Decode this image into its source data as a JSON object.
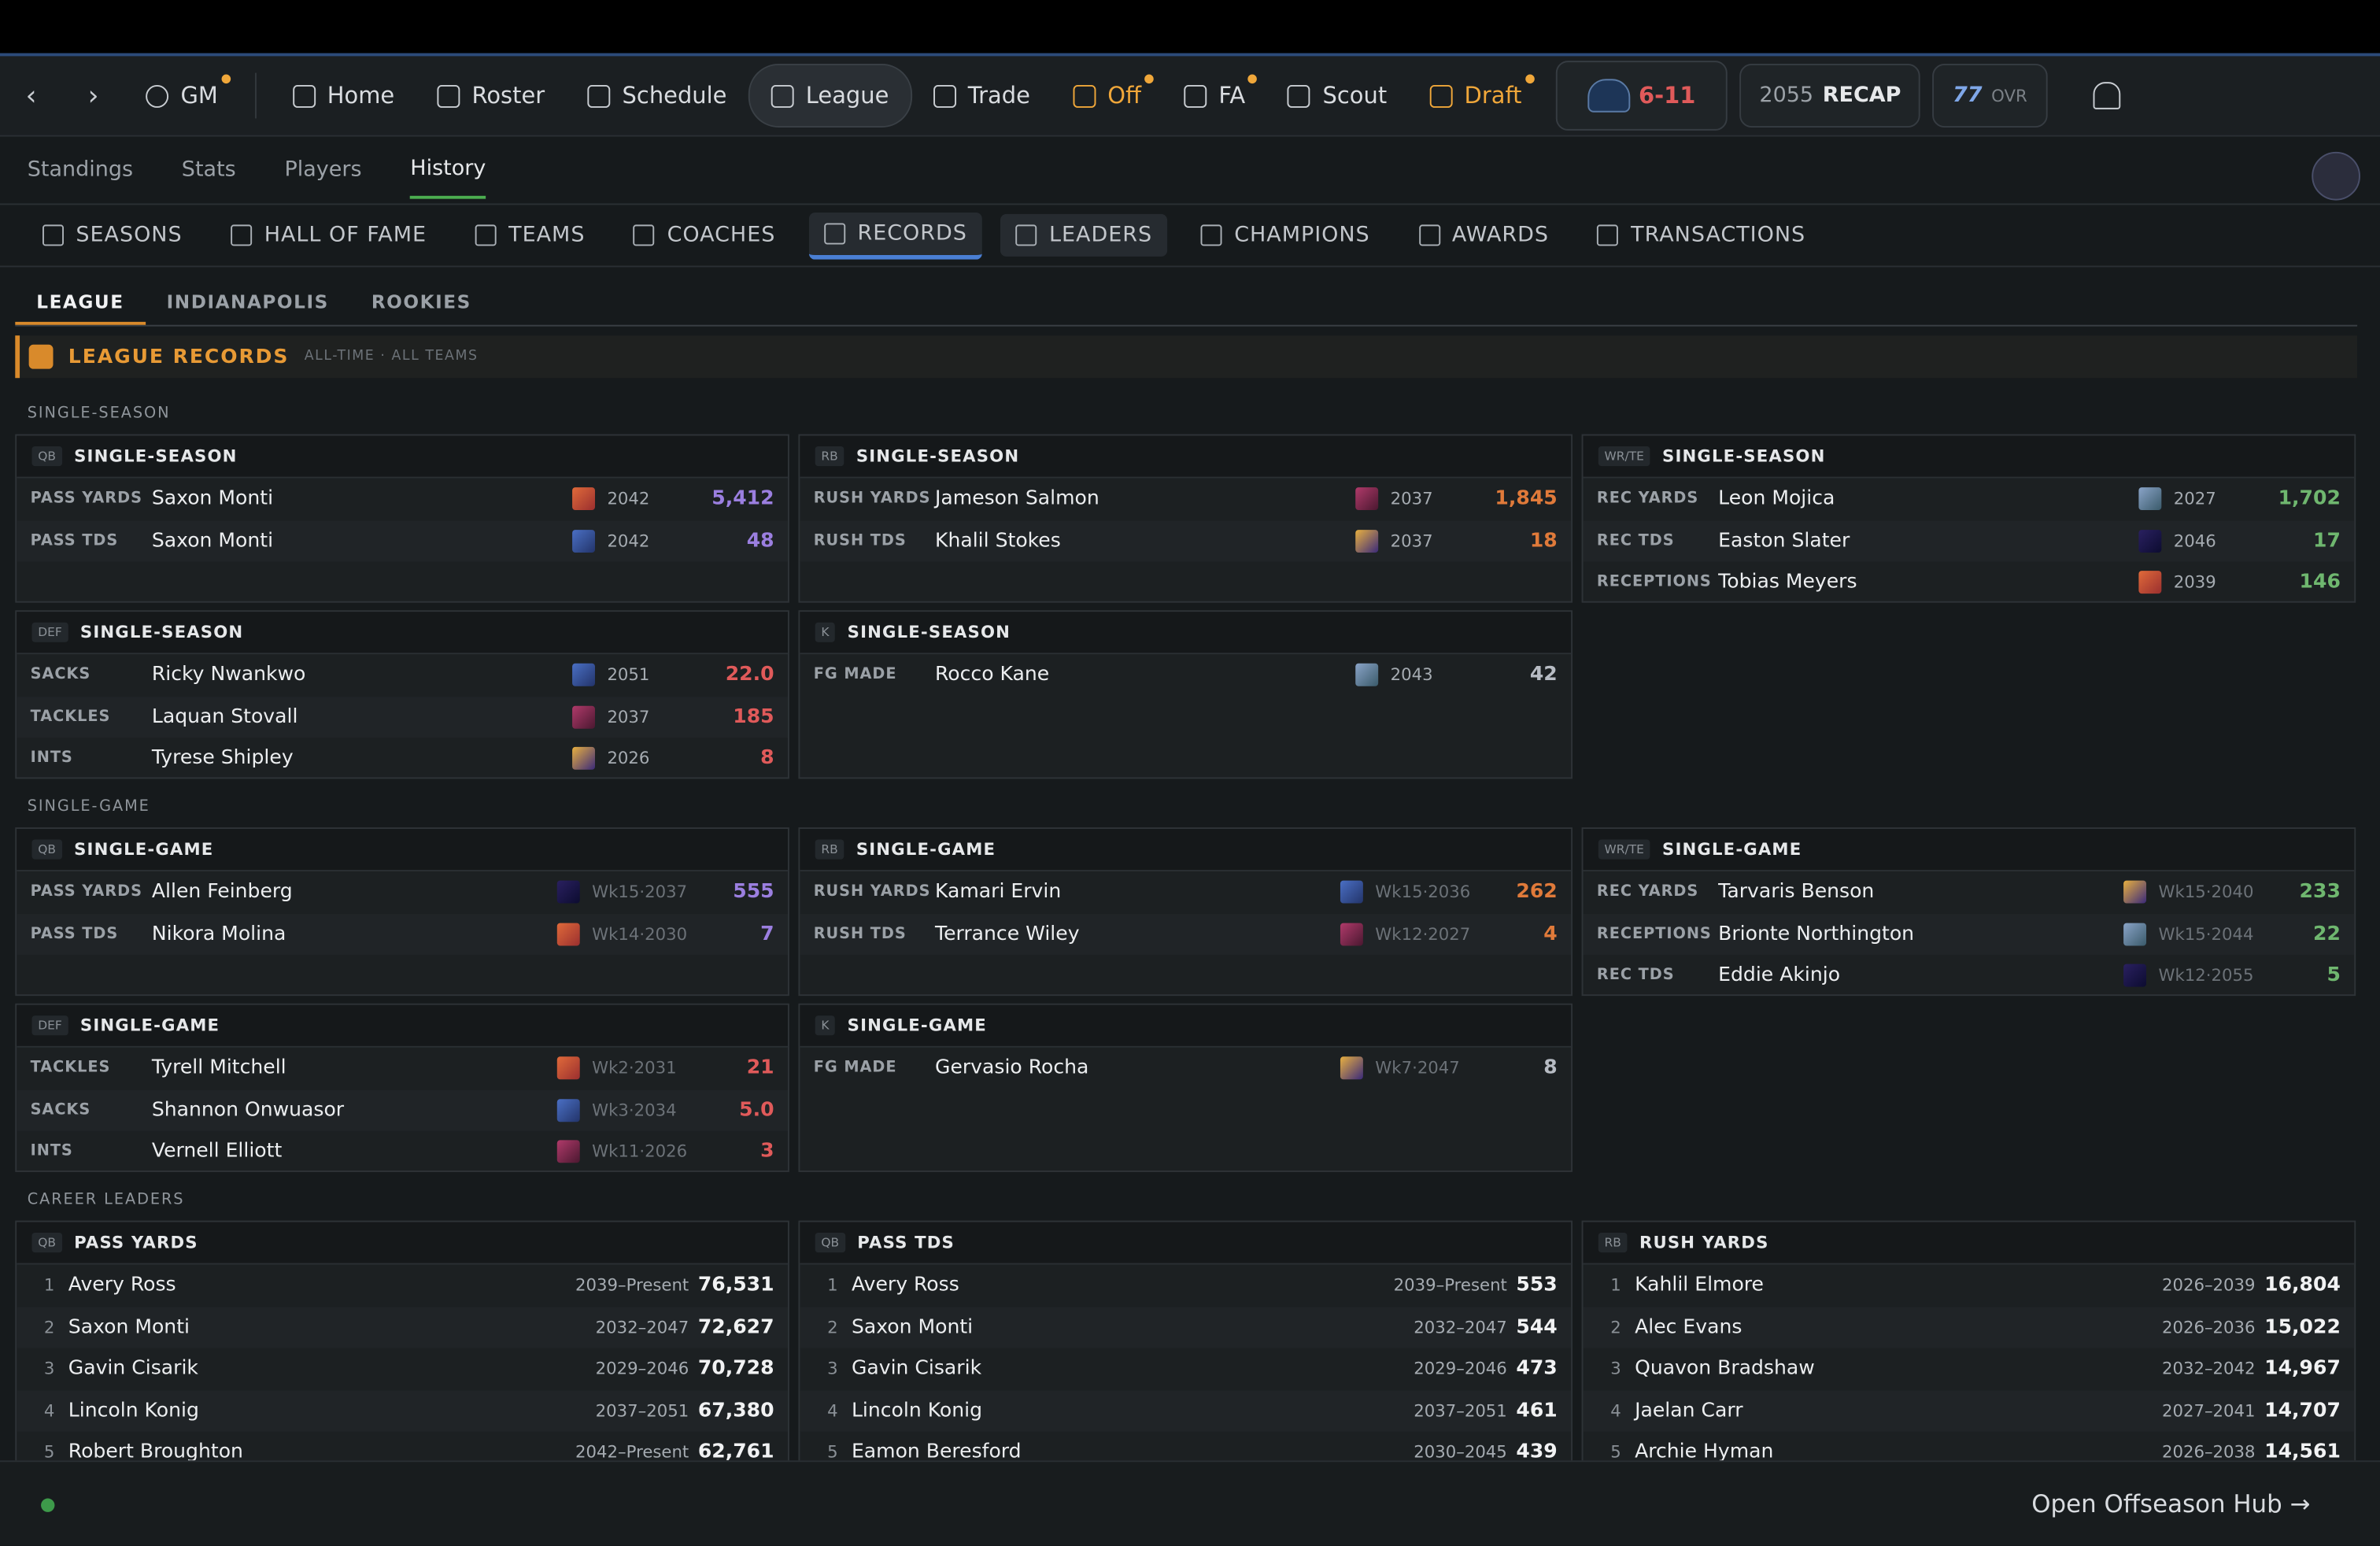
{
  "nav": {
    "gm": "GM",
    "items": [
      "Home",
      "Roster",
      "Schedule",
      "League",
      "Trade",
      "Off",
      "FA",
      "Scout",
      "Draft"
    ],
    "record": "6-11",
    "recap_year": "2055",
    "recap": "RECAP",
    "ovr": "77",
    "ovr_label": "OVR"
  },
  "subnav": [
    "Standings",
    "Stats",
    "Players",
    "History"
  ],
  "tabs": [
    "SEASONS",
    "HALL OF FAME",
    "TEAMS",
    "COACHES",
    "RECORDS",
    "LEADERS",
    "CHAMPIONS",
    "AWARDS",
    "TRANSACTIONS"
  ],
  "scope": [
    "LEAGUE",
    "INDIANAPOLIS",
    "ROOKIES"
  ],
  "header": {
    "title": "LEAGUE RECORDS",
    "subtitle": "ALL-TIME · ALL TEAMS"
  },
  "sections": [
    {
      "label": "SINGLE-SEASON",
      "cards": [
        {
          "pos": "QB",
          "title": "SINGLE-SEASON",
          "color": "#9b7fe0",
          "rows": [
            {
              "stat": "PASS YARDS",
              "player": "Saxon Monti",
              "year": "2042",
              "value": "5,412"
            },
            {
              "stat": "PASS TDS",
              "player": "Saxon Monti",
              "year": "2042",
              "value": "48"
            }
          ]
        },
        {
          "pos": "RB",
          "title": "SINGLE-SEASON",
          "color": "#e07a3a",
          "rows": [
            {
              "stat": "RUSH YARDS",
              "player": "Jameson Salmon",
              "year": "2037",
              "value": "1,845"
            },
            {
              "stat": "RUSH TDS",
              "player": "Khalil Stokes",
              "year": "2037",
              "value": "18"
            }
          ]
        },
        {
          "pos": "WR/TE",
          "title": "SINGLE-SEASON",
          "color": "#6fb76f",
          "rows": [
            {
              "stat": "REC YARDS",
              "player": "Leon Mojica",
              "year": "2027",
              "value": "1,702"
            },
            {
              "stat": "REC TDS",
              "player": "Easton Slater",
              "year": "2046",
              "value": "17"
            },
            {
              "stat": "RECEPTIONS",
              "player": "Tobias Meyers",
              "year": "2039",
              "value": "146"
            }
          ]
        },
        {
          "pos": "DEF",
          "title": "SINGLE-SEASON",
          "color": "#e05a5a",
          "rows": [
            {
              "stat": "SACKS",
              "player": "Ricky Nwankwo",
              "year": "2051",
              "value": "22.0"
            },
            {
              "stat": "TACKLES",
              "player": "Laquan Stovall",
              "year": "2037",
              "value": "185"
            },
            {
              "stat": "INTS",
              "player": "Tyrese Shipley",
              "year": "2026",
              "value": "8"
            }
          ]
        },
        {
          "pos": "K",
          "title": "SINGLE-SEASON",
          "color": "#b7bcc4",
          "rows": [
            {
              "stat": "FG MADE",
              "player": "Rocco Kane",
              "year": "2043",
              "value": "42"
            }
          ]
        }
      ]
    },
    {
      "label": "SINGLE-GAME",
      "cards": [
        {
          "pos": "QB",
          "title": "SINGLE-GAME",
          "color": "#9b7fe0",
          "rows": [
            {
              "stat": "PASS YARDS",
              "player": "Allen Feinberg",
              "year": "Wk15·2037",
              "value": "555"
            },
            {
              "stat": "PASS TDS",
              "player": "Nikora Molina",
              "year": "Wk14·2030",
              "value": "7"
            }
          ]
        },
        {
          "pos": "RB",
          "title": "SINGLE-GAME",
          "color": "#e07a3a",
          "rows": [
            {
              "stat": "RUSH YARDS",
              "player": "Kamari Ervin",
              "year": "Wk15·2036",
              "value": "262"
            },
            {
              "stat": "RUSH TDS",
              "player": "Terrance Wiley",
              "year": "Wk12·2027",
              "value": "4"
            }
          ]
        },
        {
          "pos": "WR/TE",
          "title": "SINGLE-GAME",
          "color": "#6fb76f",
          "rows": [
            {
              "stat": "REC YARDS",
              "player": "Tarvaris Benson",
              "year": "Wk15·2040",
              "value": "233"
            },
            {
              "stat": "RECEPTIONS",
              "player": "Brionte Northington",
              "year": "Wk15·2044",
              "value": "22"
            },
            {
              "stat": "REC TDS",
              "player": "Eddie Akinjo",
              "year": "Wk12·2055",
              "value": "5"
            }
          ]
        },
        {
          "pos": "DEF",
          "title": "SINGLE-GAME",
          "color": "#e05a5a",
          "rows": [
            {
              "stat": "TACKLES",
              "player": "Tyrell Mitchell",
              "year": "Wk2·2031",
              "value": "21"
            },
            {
              "stat": "SACKS",
              "player": "Shannon Onwuasor",
              "year": "Wk3·2034",
              "value": "5.0"
            },
            {
              "stat": "INTS",
              "player": "Vernell Elliott",
              "year": "Wk11·2026",
              "value": "3"
            }
          ]
        },
        {
          "pos": "K",
          "title": "SINGLE-GAME",
          "color": "#b7bcc4",
          "rows": [
            {
              "stat": "FG MADE",
              "player": "Gervasio Rocha",
              "year": "Wk7·2047",
              "value": "8"
            }
          ]
        }
      ]
    }
  ],
  "career": {
    "label": "CAREER LEADERS",
    "cards": [
      {
        "pos": "QB",
        "title": "PASS YARDS",
        "rows": [
          {
            "rank": "1",
            "player": "Avery Ross",
            "span": "2039–Present",
            "value": "76,531"
          },
          {
            "rank": "2",
            "player": "Saxon Monti",
            "span": "2032–2047",
            "value": "72,627"
          },
          {
            "rank": "3",
            "player": "Gavin Cisarik",
            "span": "2029–2046",
            "value": "70,728"
          },
          {
            "rank": "4",
            "player": "Lincoln Konig",
            "span": "2037–2051",
            "value": "67,380"
          },
          {
            "rank": "5",
            "player": "Robert Broughton",
            "span": "2042–Present",
            "value": "62,761"
          }
        ]
      },
      {
        "pos": "QB",
        "title": "PASS TDS",
        "rows": [
          {
            "rank": "1",
            "player": "Avery Ross",
            "span": "2039–Present",
            "value": "553"
          },
          {
            "rank": "2",
            "player": "Saxon Monti",
            "span": "2032–2047",
            "value": "544"
          },
          {
            "rank": "3",
            "player": "Gavin Cisarik",
            "span": "2029–2046",
            "value": "473"
          },
          {
            "rank": "4",
            "player": "Lincoln Konig",
            "span": "2037–2051",
            "value": "461"
          },
          {
            "rank": "5",
            "player": "Eamon Beresford",
            "span": "2030–2045",
            "value": "439"
          }
        ]
      },
      {
        "pos": "RB",
        "title": "RUSH YARDS",
        "rows": [
          {
            "rank": "1",
            "player": "Kahlil Elmore",
            "span": "2026–2039",
            "value": "16,804"
          },
          {
            "rank": "2",
            "player": "Alec Evans",
            "span": "2026–2036",
            "value": "15,022"
          },
          {
            "rank": "3",
            "player": "Quavon Bradshaw",
            "span": "2032–2042",
            "value": "14,967"
          },
          {
            "rank": "4",
            "player": "Jaelan Carr",
            "span": "2027–2041",
            "value": "14,707"
          },
          {
            "rank": "5",
            "player": "Archie Hyman",
            "span": "2026–2038",
            "value": "14,561"
          }
        ]
      }
    ]
  },
  "footer": {
    "link": "Open Offseason Hub →"
  }
}
